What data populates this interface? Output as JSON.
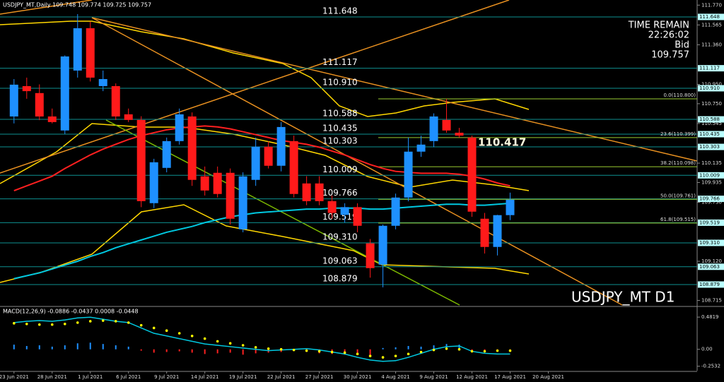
{
  "chart_data": [
    {
      "type": "candlestick",
      "title": "USDJPY_MT,Daily  109.748 109.774 109.725 109.757",
      "time_remain_label": "TIME REMAIN",
      "time_remain": "22:26:02",
      "bid_label": "Bid",
      "bid": 109.757,
      "highlight": 110.417,
      "symbol_label": "USDJPY_MT D1",
      "xlim": [
        -1.1,
        53.7
      ],
      "ylim": [
        108.667,
        111.823
      ],
      "yticks": [
        {
          "value": 111.77,
          "label": "111.770"
        },
        111.565,
        {
          "value": 111.36,
          "label": "111.360"
        },
        {
          "value": 110.95,
          "label": "110.950"
        },
        {
          "value": 110.75,
          "label": "110.750"
        },
        110.545,
        110.135,
        109.935,
        {
          "value": 109.73,
          "label": "109.730"
        },
        {
          "value": 109.12,
          "label": "109.120"
        },
        108.715
      ],
      "levels": [
        111.648,
        111.117,
        {
          "value": 110.91,
          "label": "110.910"
        },
        110.588,
        110.435,
        110.303,
        110.009,
        109.766,
        109.519,
        {
          "value": 109.31,
          "label": "109.310"
        },
        109.063,
        108.879
      ],
      "fib_levels": [
        {
          "value": 110.8,
          "label": "0.0(110.800)"
        },
        {
          "value": 110.399,
          "label": "23.6(110.399)"
        },
        {
          "value": 110.098,
          "label": "38.2(110.098)"
        },
        {
          "value": 109.761,
          "label": "50.0(109.761)"
        },
        {
          "value": 109.515,
          "label": "61.8(109.515)"
        }
      ],
      "up_color": "#1e90ff",
      "down_color": "#ff1a1a",
      "level_color": "#0e8f8f",
      "fib_color": "#9acd32",
      "candles": [
        {
          "o": 110.618,
          "h": 111.005,
          "l": 110.546,
          "c": 110.947
        },
        {
          "o": 110.932,
          "h": 111.02,
          "l": 110.801,
          "c": 110.88
        },
        {
          "o": 110.86,
          "h": 110.95,
          "l": 110.58,
          "c": 110.618
        },
        {
          "o": 110.618,
          "h": 110.7,
          "l": 110.546,
          "c": 110.56
        },
        {
          "o": 110.473,
          "h": 111.25,
          "l": 110.436,
          "c": 111.239
        },
        {
          "o": 111.093,
          "h": 111.677,
          "l": 111.02,
          "c": 111.531
        },
        {
          "o": 111.531,
          "h": 111.6,
          "l": 110.98,
          "c": 111.02
        },
        {
          "o": 110.932,
          "h": 111.093,
          "l": 110.88,
          "c": 111.005
        },
        {
          "o": 110.932,
          "h": 110.96,
          "l": 110.582,
          "c": 110.618
        },
        {
          "o": 110.64,
          "h": 110.7,
          "l": 110.56,
          "c": 110.582
        },
        {
          "o": 110.582,
          "h": 110.62,
          "l": 109.68,
          "c": 109.742
        },
        {
          "o": 109.721,
          "h": 110.18,
          "l": 109.67,
          "c": 110.144
        },
        {
          "o": 110.086,
          "h": 110.4,
          "l": 110.04,
          "c": 110.363
        },
        {
          "o": 110.363,
          "h": 110.7,
          "l": 110.327,
          "c": 110.64
        },
        {
          "o": 110.618,
          "h": 110.66,
          "l": 109.9,
          "c": 109.962
        },
        {
          "o": 109.998,
          "h": 110.1,
          "l": 109.8,
          "c": 109.852
        },
        {
          "o": 110.035,
          "h": 110.1,
          "l": 109.78,
          "c": 109.816
        },
        {
          "o": 110.035,
          "h": 110.08,
          "l": 109.5,
          "c": 109.56
        },
        {
          "o": 109.451,
          "h": 110.04,
          "l": 109.42,
          "c": 109.998
        },
        {
          "o": 109.962,
          "h": 110.4,
          "l": 109.9,
          "c": 110.305
        },
        {
          "o": 110.305,
          "h": 110.36,
          "l": 110.08,
          "c": 110.108
        },
        {
          "o": 110.108,
          "h": 110.56,
          "l": 110.05,
          "c": 110.509
        },
        {
          "o": 110.363,
          "h": 110.42,
          "l": 109.78,
          "c": 109.816
        },
        {
          "o": 109.925,
          "h": 110.0,
          "l": 109.7,
          "c": 109.742
        },
        {
          "o": 109.925,
          "h": 110.0,
          "l": 109.7,
          "c": 109.742
        },
        {
          "o": 109.742,
          "h": 109.8,
          "l": 109.56,
          "c": 109.62
        },
        {
          "o": 109.6,
          "h": 109.72,
          "l": 109.52,
          "c": 109.68
        },
        {
          "o": 109.68,
          "h": 109.72,
          "l": 109.42,
          "c": 109.487
        },
        {
          "o": 109.305,
          "h": 109.35,
          "l": 108.95,
          "c": 109.049
        },
        {
          "o": 109.085,
          "h": 109.5,
          "l": 108.85,
          "c": 109.487
        },
        {
          "o": 109.487,
          "h": 109.82,
          "l": 109.45,
          "c": 109.779
        },
        {
          "o": 109.779,
          "h": 110.4,
          "l": 109.74,
          "c": 110.254
        },
        {
          "o": 110.254,
          "h": 110.42,
          "l": 110.2,
          "c": 110.327
        },
        {
          "o": 110.363,
          "h": 110.65,
          "l": 110.3,
          "c": 110.618
        },
        {
          "o": 110.582,
          "h": 110.8,
          "l": 110.45,
          "c": 110.473
        },
        {
          "o": 110.45,
          "h": 110.5,
          "l": 110.4,
          "c": 110.42
        },
        {
          "o": 110.4,
          "h": 110.42,
          "l": 109.58,
          "c": 109.633
        },
        {
          "o": 109.56,
          "h": 109.62,
          "l": 109.2,
          "c": 109.268
        },
        {
          "o": 109.268,
          "h": 109.6,
          "l": 109.18,
          "c": 109.597
        },
        {
          "o": 109.597,
          "h": 109.83,
          "l": 109.546,
          "c": 109.757
        }
      ],
      "series": [
        {
          "color": "#00c8e0",
          "values": [
            108.94,
            108.97,
            109.0,
            109.04,
            109.08,
            109.12,
            109.17,
            109.21,
            109.26,
            109.3,
            109.34,
            109.38,
            109.42,
            109.45,
            109.48,
            109.52,
            109.55,
            109.58,
            109.6,
            109.62,
            109.63,
            109.64,
            109.65,
            109.66,
            109.66,
            109.67,
            109.67,
            109.67,
            109.66,
            109.66,
            109.67,
            109.68,
            109.69,
            109.7,
            109.71,
            109.71,
            109.7,
            109.7,
            109.71,
            109.72
          ]
        },
        {
          "color": "#ff2020",
          "values": [
            109.85,
            109.9,
            109.95,
            110.0,
            110.08,
            110.15,
            110.22,
            110.28,
            110.33,
            110.38,
            110.42,
            110.45,
            110.48,
            110.5,
            110.51,
            110.52,
            110.51,
            110.49,
            110.46,
            110.43,
            110.4,
            110.37,
            110.35,
            110.33,
            110.3,
            110.26,
            110.22,
            110.17,
            110.12,
            110.08,
            110.05,
            110.04,
            110.03,
            110.03,
            110.03,
            110.02,
            110.0,
            109.97,
            109.93,
            109.9
          ]
        }
      ]
    },
    {
      "type": "macd",
      "title": "MACD(12,26,9) -0.0886 -0.0437 0.0008 -0.0448",
      "xlim": [
        -1.1,
        53.7
      ],
      "ylim": [
        -0.32,
        0.61
      ],
      "yticks": [
        0.4819,
        {
          "value": 0,
          "label": "0.00"
        },
        -0.2532
      ],
      "xticks": [
        {
          "value": 0,
          "label": "23 Jun 2021"
        },
        {
          "value": 3,
          "label": "28 Jun 2021"
        },
        {
          "value": 6,
          "label": "1 Jul 2021"
        },
        {
          "value": 9,
          "label": "6 Jul 2021"
        },
        {
          "value": 12,
          "label": "9 Jul 2021"
        },
        {
          "value": 15,
          "label": "14 Jul 2021"
        },
        {
          "value": 18,
          "label": "19 Jul 2021"
        },
        {
          "value": 21,
          "label": "22 Jul 2021"
        },
        {
          "value": 24,
          "label": "27 Jul 2021"
        },
        {
          "value": 27,
          "label": "30 Jul 2021"
        },
        {
          "value": 30,
          "label": "4 Aug 2021"
        },
        {
          "value": 33,
          "label": "9 Aug 2021"
        },
        {
          "value": 36,
          "label": "12 Aug 2021"
        },
        {
          "value": 39,
          "label": "17 Aug 2021"
        },
        {
          "value": 42,
          "label": "20 Aug 2021"
        }
      ],
      "histogram": {
        "up_color": "#1e90ff",
        "down_color": "#ff2020",
        "values": [
          0.07,
          0.05,
          0.06,
          0.04,
          0.06,
          0.09,
          0.1,
          0.08,
          0.06,
          0.04,
          -0.02,
          -0.05,
          -0.04,
          -0.03,
          -0.05,
          -0.07,
          -0.06,
          -0.05,
          -0.08,
          -0.06,
          -0.05,
          -0.04,
          -0.02,
          -0.04,
          -0.06,
          -0.07,
          -0.08,
          -0.06,
          -0.1,
          0.02,
          0.03,
          0.05,
          0.04,
          0.06,
          0.08,
          0.07,
          -0.03,
          -0.04,
          -0.03,
          -0.04
        ]
      },
      "dots": {
        "color": "#ffff00",
        "values": [
          0.39,
          0.38,
          0.37,
          0.37,
          0.38,
          0.4,
          0.42,
          0.43,
          0.42,
          0.4,
          0.36,
          0.32,
          0.28,
          0.24,
          0.2,
          0.16,
          0.12,
          0.09,
          0.06,
          0.03,
          0.01,
          0.0,
          -0.01,
          -0.02,
          -0.03,
          -0.04,
          -0.05,
          -0.07,
          -0.1,
          -0.12,
          -0.1,
          -0.07,
          -0.04,
          -0.01,
          0.01,
          0.0,
          -0.03,
          -0.03,
          -0.02,
          -0.02
        ]
      },
      "line": {
        "color": "#00c8e0",
        "values": [
          0.4,
          0.42,
          0.43,
          0.42,
          0.44,
          0.47,
          0.48,
          0.45,
          0.42,
          0.4,
          0.32,
          0.24,
          0.2,
          0.16,
          0.12,
          0.08,
          0.06,
          0.04,
          0.02,
          0.0,
          -0.02,
          -0.01,
          0.0,
          0.01,
          -0.01,
          -0.04,
          -0.07,
          -0.12,
          -0.16,
          -0.18,
          -0.17,
          -0.12,
          -0.06,
          0.0,
          0.04,
          0.05,
          -0.03,
          -0.06,
          -0.07,
          -0.07
        ]
      }
    }
  ]
}
